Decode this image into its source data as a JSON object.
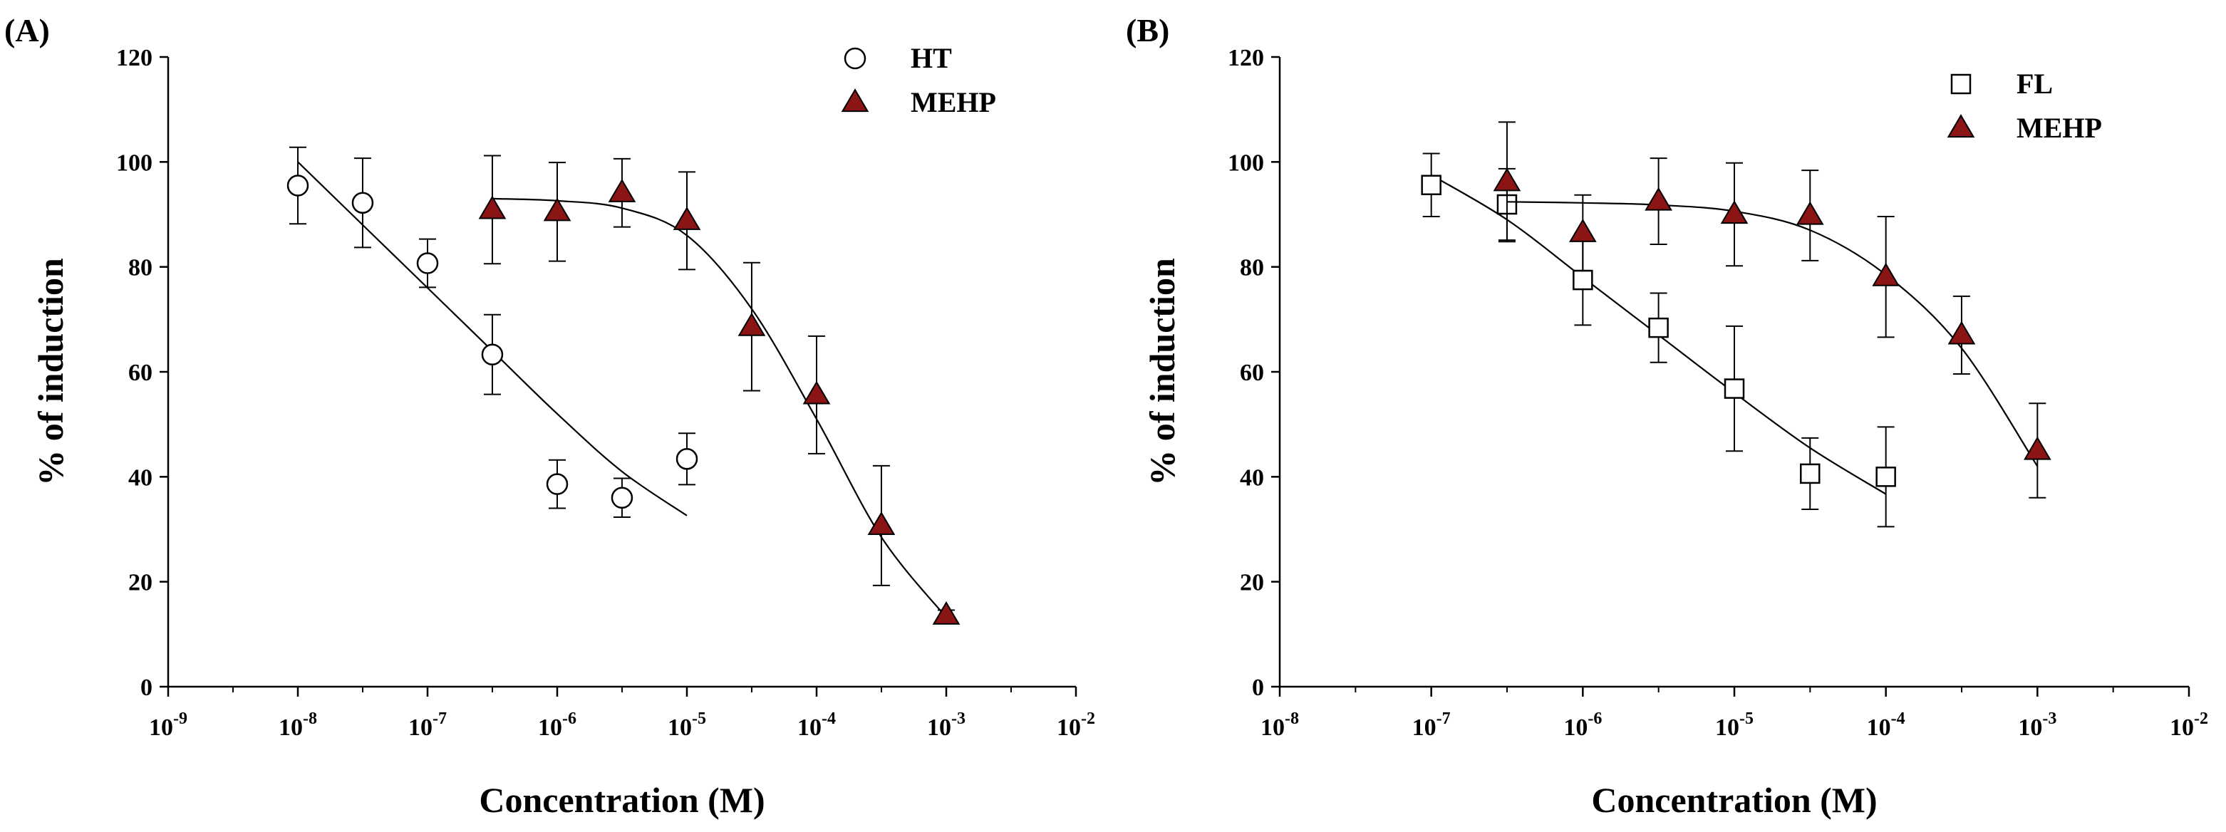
{
  "chart_data": [
    {
      "panel_label": "(A)",
      "type": "scatter",
      "xscale": "log",
      "xlim_exp": [
        -9,
        -2
      ],
      "ylim": [
        0,
        120
      ],
      "yticks": [
        0,
        20,
        40,
        60,
        80,
        100,
        120
      ],
      "xticks_exp": [
        -9,
        -8,
        -7,
        -6,
        -5,
        -4,
        -3,
        -2
      ],
      "xlabel": "Concentration (M)",
      "ylabel": "% of induction",
      "grid": false,
      "legend": "top-right",
      "series": [
        {
          "name": "HT",
          "marker": "circle-open",
          "color": "#000000",
          "points": [
            {
              "x": 1e-08,
              "y": 95.5,
              "err": 7.3
            },
            {
              "x": 3.16e-08,
              "y": 92.2,
              "err": 8.5
            },
            {
              "x": 1e-07,
              "y": 80.7,
              "err": 4.6
            },
            {
              "x": 3.16e-07,
              "y": 63.3,
              "err": 7.6
            },
            {
              "x": 1e-06,
              "y": 38.6,
              "err": 4.6
            },
            {
              "x": 3.16e-06,
              "y": 36.0,
              "err": 3.7
            },
            {
              "x": 1e-05,
              "y": 43.4,
              "err": 4.9
            }
          ],
          "fit": [
            {
              "x": 1e-08,
              "y": 100.0
            },
            {
              "x": 3.16e-08,
              "y": 88.0
            },
            {
              "x": 1e-07,
              "y": 76.0
            },
            {
              "x": 3.16e-07,
              "y": 64.0
            },
            {
              "x": 1e-06,
              "y": 52.0
            },
            {
              "x": 3.16e-06,
              "y": 41.0
            },
            {
              "x": 1e-05,
              "y": 32.6
            }
          ]
        },
        {
          "name": "MEHP",
          "marker": "triangle-filled",
          "color": "#8b1414",
          "points": [
            {
              "x": 3.16e-07,
              "y": 90.9,
              "err": 10.3
            },
            {
              "x": 1e-06,
              "y": 90.5,
              "err": 9.4
            },
            {
              "x": 3.16e-06,
              "y": 94.1,
              "err": 6.5
            },
            {
              "x": 1e-05,
              "y": 88.8,
              "err": 9.3
            },
            {
              "x": 3.16e-05,
              "y": 68.6,
              "err": 12.2
            },
            {
              "x": 0.0001,
              "y": 55.6,
              "err": 11.2
            },
            {
              "x": 0.000316,
              "y": 30.7,
              "err": 11.4
            },
            {
              "x": 0.001,
              "y": 13.6,
              "err": 1.0
            }
          ],
          "fit": [
            {
              "x": 3.16e-07,
              "y": 93.0
            },
            {
              "x": 1e-06,
              "y": 92.6
            },
            {
              "x": 3.16e-06,
              "y": 91.2
            },
            {
              "x": 1e-05,
              "y": 86.0
            },
            {
              "x": 3.16e-05,
              "y": 72.0
            },
            {
              "x": 0.0001,
              "y": 51.0
            },
            {
              "x": 0.000316,
              "y": 28.5
            },
            {
              "x": 0.001,
              "y": 13.2
            }
          ]
        }
      ]
    },
    {
      "panel_label": "(B)",
      "type": "scatter",
      "xscale": "log",
      "xlim_exp": [
        -8,
        -2
      ],
      "ylim": [
        0,
        120
      ],
      "yticks": [
        0,
        20,
        40,
        60,
        80,
        100,
        120
      ],
      "xticks_exp": [
        -8,
        -7,
        -6,
        -5,
        -4,
        -3,
        -2
      ],
      "xlabel": "Concentration (M)",
      "ylabel": "% of induction",
      "grid": false,
      "legend": "top-right",
      "series": [
        {
          "name": "FL",
          "marker": "square-open",
          "color": "#000000",
          "points": [
            {
              "x": 1e-07,
              "y": 95.6,
              "err": 6.0
            },
            {
              "x": 3.16e-07,
              "y": 91.9,
              "err": 6.8
            },
            {
              "x": 1e-06,
              "y": 77.5,
              "err": 8.6
            },
            {
              "x": 3.16e-06,
              "y": 68.4,
              "err": 6.6
            },
            {
              "x": 1e-05,
              "y": 56.8,
              "err": 11.9
            },
            {
              "x": 3.16e-05,
              "y": 40.6,
              "err": 6.8
            },
            {
              "x": 0.0001,
              "y": 40.0,
              "err": 9.5
            }
          ],
          "fit": [
            {
              "x": 1e-07,
              "y": 97.5
            },
            {
              "x": 3.16e-07,
              "y": 89.0
            },
            {
              "x": 1e-06,
              "y": 78.0
            },
            {
              "x": 3.16e-06,
              "y": 67.0
            },
            {
              "x": 1e-05,
              "y": 56.0
            },
            {
              "x": 3.16e-05,
              "y": 45.5
            },
            {
              "x": 0.0001,
              "y": 36.7
            }
          ]
        },
        {
          "name": "MEHP",
          "marker": "triangle-filled",
          "color": "#8b1414",
          "points": [
            {
              "x": 3.16e-07,
              "y": 96.2,
              "err": 11.4
            },
            {
              "x": 1e-06,
              "y": 86.5,
              "err": 7.2
            },
            {
              "x": 3.16e-06,
              "y": 92.5,
              "err": 8.2
            },
            {
              "x": 1e-05,
              "y": 90.0,
              "err": 9.8
            },
            {
              "x": 3.16e-05,
              "y": 89.8,
              "err": 8.6
            },
            {
              "x": 0.0001,
              "y": 78.1,
              "err": 11.5
            },
            {
              "x": 0.000316,
              "y": 67.0,
              "err": 7.4
            },
            {
              "x": 0.001,
              "y": 45.0,
              "err": 9.0
            }
          ],
          "fit": [
            {
              "x": 3.16e-07,
              "y": 92.4
            },
            {
              "x": 1e-06,
              "y": 92.2
            },
            {
              "x": 3.16e-06,
              "y": 91.8
            },
            {
              "x": 1e-05,
              "y": 90.6
            },
            {
              "x": 3.16e-05,
              "y": 87.0
            },
            {
              "x": 0.0001,
              "y": 78.5
            },
            {
              "x": 0.000316,
              "y": 64.5
            },
            {
              "x": 0.001,
              "y": 42.0
            }
          ]
        }
      ]
    }
  ]
}
